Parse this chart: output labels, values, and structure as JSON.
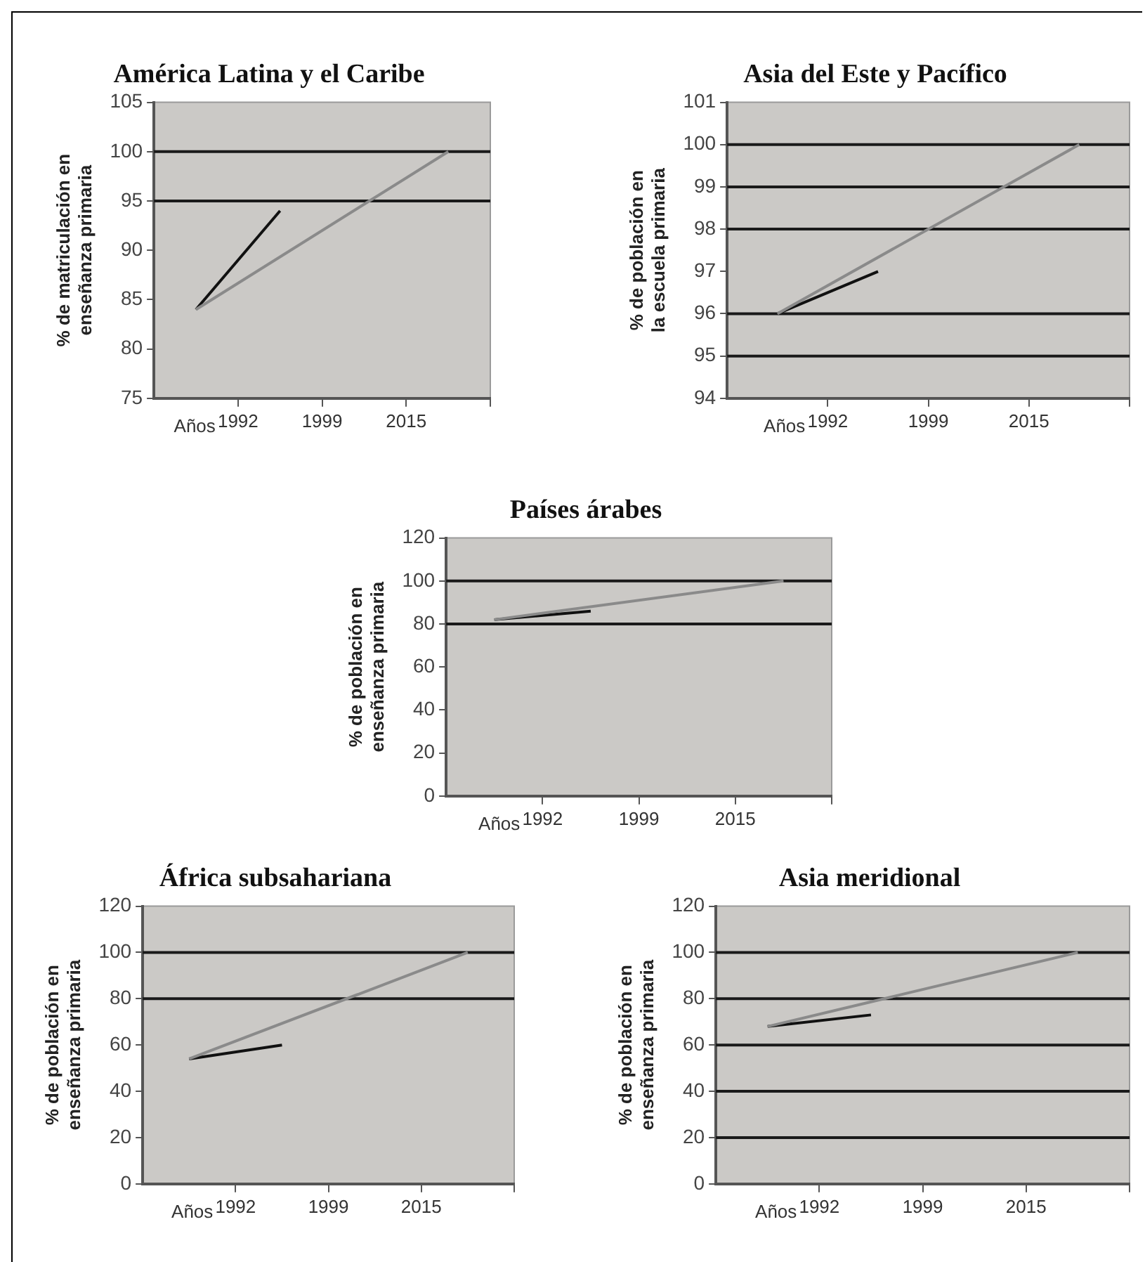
{
  "chart_data": [
    {
      "type": "line",
      "title": "América Latina y el Caribe",
      "xlabel": "Años",
      "ylabel": "% de matriculación en enseñanza primaria",
      "categories": [
        null,
        null,
        "1992",
        null,
        "1999",
        null,
        "2015",
        null,
        null
      ],
      "ylim": [
        75,
        105
      ],
      "yticks": [
        75,
        80,
        85,
        90,
        95,
        100,
        105
      ],
      "series": [
        {
          "color": "#8a8a8a",
          "values": [
            null,
            84,
            null,
            null,
            null,
            null,
            null,
            100,
            null
          ]
        },
        {
          "color": "#111111",
          "values": [
            null,
            84,
            null,
            94,
            null,
            null,
            null,
            null,
            null
          ]
        }
      ],
      "ref_lines": [
        {
          "axis": "y",
          "value": 95,
          "color": "#1a1a1a"
        },
        {
          "axis": "y",
          "value": 100,
          "color": "#1a1a1a"
        }
      ]
    },
    {
      "type": "line",
      "title": "Asia del Este y Pacífico",
      "xlabel": "Años",
      "ylabel": "% de población en la escuela primaria",
      "categories": [
        null,
        null,
        "1992",
        null,
        "1999",
        null,
        "2015",
        null,
        null
      ],
      "ylim": [
        94,
        101
      ],
      "yticks": [
        94,
        95,
        96,
        97,
        98,
        99,
        100,
        101
      ],
      "series": [
        {
          "color": "#8a8a8a",
          "values": [
            null,
            96,
            null,
            null,
            null,
            null,
            null,
            100,
            null
          ]
        },
        {
          "color": "#111111",
          "values": [
            null,
            96,
            null,
            97,
            null,
            null,
            null,
            null,
            null
          ]
        }
      ],
      "ref_lines": [
        {
          "axis": "y",
          "value": 95,
          "color": "#1a1a1a"
        },
        {
          "axis": "y",
          "value": 96,
          "color": "#1a1a1a"
        },
        {
          "axis": "y",
          "value": 98,
          "color": "#1a1a1a"
        },
        {
          "axis": "y",
          "value": 99,
          "color": "#1a1a1a"
        },
        {
          "axis": "y",
          "value": 100,
          "color": "#1a1a1a"
        }
      ]
    },
    {
      "type": "line",
      "title": "Países árabes",
      "xlabel": "Años",
      "ylabel": "% de población en enseñanza primaria",
      "categories": [
        null,
        null,
        "1992",
        null,
        "1999",
        null,
        "2015",
        null,
        null
      ],
      "ylim": [
        0,
        120
      ],
      "yticks": [
        0,
        20,
        40,
        60,
        80,
        100,
        120
      ],
      "series": [
        {
          "color": "#8a8a8a",
          "values": [
            null,
            82,
            null,
            null,
            null,
            null,
            null,
            100,
            null
          ]
        },
        {
          "color": "#111111",
          "values": [
            null,
            82,
            null,
            86,
            null,
            null,
            null,
            null,
            null
          ]
        }
      ],
      "ref_lines": [
        {
          "axis": "y",
          "value": 80,
          "color": "#1a1a1a"
        },
        {
          "axis": "y",
          "value": 100,
          "color": "#1a1a1a"
        }
      ]
    },
    {
      "type": "line",
      "title": "África subsahariana",
      "xlabel": "Años",
      "ylabel": "% de población en enseñanza primaria",
      "categories": [
        null,
        null,
        "1992",
        null,
        "1999",
        null,
        "2015",
        null,
        null
      ],
      "ylim": [
        0,
        120
      ],
      "yticks": [
        0,
        20,
        40,
        60,
        80,
        100,
        120
      ],
      "series": [
        {
          "color": "#8a8a8a",
          "values": [
            null,
            54,
            null,
            null,
            null,
            null,
            null,
            100,
            null
          ]
        },
        {
          "color": "#111111",
          "values": [
            null,
            54,
            null,
            60,
            null,
            null,
            null,
            null,
            null
          ]
        }
      ],
      "ref_lines": [
        {
          "axis": "y",
          "value": 80,
          "color": "#1a1a1a"
        },
        {
          "axis": "y",
          "value": 100,
          "color": "#1a1a1a"
        }
      ]
    },
    {
      "type": "line",
      "title": "Asia meridional",
      "xlabel": "Años",
      "ylabel": "% de población en enseñanza primaria",
      "categories": [
        null,
        null,
        "1992",
        null,
        "1999",
        null,
        "2015",
        null,
        null
      ],
      "ylim": [
        0,
        120
      ],
      "yticks": [
        0,
        20,
        40,
        60,
        80,
        100,
        120
      ],
      "series": [
        {
          "color": "#8a8a8a",
          "values": [
            null,
            68,
            null,
            null,
            null,
            null,
            null,
            100,
            null
          ]
        },
        {
          "color": "#111111",
          "values": [
            null,
            68,
            null,
            73,
            null,
            null,
            null,
            null,
            null
          ]
        }
      ],
      "ref_lines": [
        {
          "axis": "y",
          "value": 20,
          "color": "#1a1a1a"
        },
        {
          "axis": "y",
          "value": 40,
          "color": "#1a1a1a"
        },
        {
          "axis": "y",
          "value": 60,
          "color": "#1a1a1a"
        },
        {
          "axis": "y",
          "value": 80,
          "color": "#1a1a1a"
        },
        {
          "axis": "y",
          "value": 100,
          "color": "#1a1a1a"
        }
      ]
    }
  ]
}
